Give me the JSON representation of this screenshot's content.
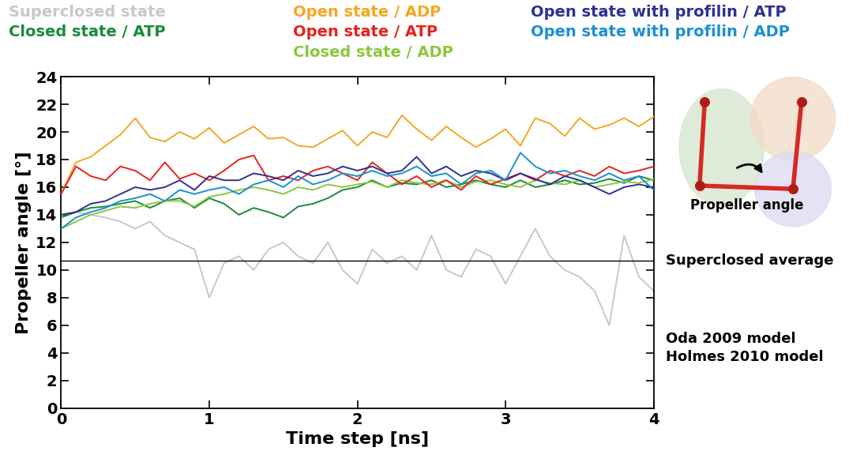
{
  "chart_data": {
    "type": "line",
    "x_label": "Time step [ns]",
    "y_label": "Propeller angle [°]",
    "xlim": [
      0,
      4
    ],
    "ylim": [
      0,
      24
    ],
    "xticks": [
      0,
      1,
      2,
      3,
      4
    ],
    "yticks": [
      0,
      2,
      4,
      6,
      8,
      10,
      12,
      14,
      16,
      18,
      20,
      22,
      24
    ],
    "x": [
      0,
      0.1,
      0.2,
      0.3,
      0.4,
      0.5,
      0.6,
      0.7,
      0.8,
      0.9,
      1.0,
      1.1,
      1.2,
      1.3,
      1.4,
      1.5,
      1.6,
      1.7,
      1.8,
      1.9,
      2.0,
      2.1,
      2.2,
      2.3,
      2.4,
      2.5,
      2.6,
      2.7,
      2.8,
      2.9,
      3.0,
      3.1,
      3.2,
      3.3,
      3.4,
      3.5,
      3.6,
      3.7,
      3.8,
      3.9,
      4.0
    ],
    "series": [
      {
        "name": "Superclosed state",
        "color": "#c8c8c8",
        "values": [
          14.0,
          14.2,
          14.0,
          13.8,
          13.5,
          13.0,
          13.5,
          12.5,
          12.0,
          11.5,
          8.0,
          10.5,
          11.0,
          10.0,
          11.5,
          12.0,
          11.0,
          10.5,
          12.0,
          10.0,
          9.0,
          11.5,
          10.5,
          11.0,
          10.0,
          12.5,
          10.0,
          9.5,
          11.5,
          11.0,
          9.0,
          11.0,
          13.0,
          11.0,
          10.0,
          9.5,
          8.5,
          6.0,
          12.5,
          9.5,
          8.5
        ]
      },
      {
        "name": "Closed state / ATP",
        "color": "#1a8a3c",
        "values": [
          13.8,
          14.2,
          14.5,
          14.6,
          14.8,
          15.0,
          14.5,
          15.0,
          15.2,
          14.5,
          15.2,
          14.8,
          14.0,
          14.5,
          14.2,
          13.8,
          14.6,
          14.8,
          15.2,
          15.8,
          16.0,
          16.5,
          16.0,
          16.3,
          16.2,
          16.5,
          16.0,
          16.2,
          16.5,
          16.2,
          16.0,
          16.5,
          16.0,
          16.2,
          16.5,
          16.2,
          16.3,
          16.6,
          16.3,
          16.8,
          16.5
        ]
      },
      {
        "name": "Closed state / ADP",
        "color": "#8cc63f",
        "values": [
          13.0,
          13.5,
          14.0,
          14.3,
          14.6,
          14.5,
          14.8,
          15.0,
          15.0,
          14.6,
          15.3,
          15.5,
          15.8,
          16.0,
          15.8,
          15.5,
          16.0,
          15.8,
          16.2,
          16.0,
          16.2,
          16.4,
          16.0,
          16.5,
          16.3,
          16.2,
          16.5,
          16.0,
          16.4,
          16.5,
          16.2,
          16.0,
          16.5,
          16.3,
          16.2,
          16.5,
          16.0,
          16.2,
          16.4,
          16.3,
          16.6
        ]
      },
      {
        "name": "Open state / ADP",
        "color": "#f5a623",
        "values": [
          15.5,
          17.8,
          18.2,
          19.0,
          19.8,
          21.0,
          19.6,
          19.3,
          20.0,
          19.5,
          20.3,
          19.2,
          19.8,
          20.4,
          19.5,
          19.6,
          19.0,
          18.9,
          19.5,
          20.1,
          19.0,
          20.0,
          19.6,
          21.2,
          20.2,
          19.4,
          20.4,
          19.6,
          18.9,
          19.5,
          20.2,
          19.0,
          21.0,
          20.6,
          19.7,
          21.0,
          20.2,
          20.5,
          21.0,
          20.4,
          21.1
        ]
      },
      {
        "name": "Open state / ATP",
        "color": "#e8221c",
        "values": [
          15.5,
          17.5,
          16.8,
          16.5,
          17.5,
          17.2,
          16.5,
          17.8,
          16.6,
          17.0,
          16.5,
          17.2,
          18.0,
          18.3,
          16.5,
          16.8,
          16.5,
          17.2,
          17.5,
          17.0,
          16.5,
          17.8,
          17.0,
          16.2,
          16.8,
          16.0,
          16.5,
          15.8,
          16.8,
          16.2,
          16.6,
          17.0,
          16.5,
          17.2,
          16.8,
          17.2,
          16.8,
          17.5,
          17.0,
          17.2,
          17.5
        ]
      },
      {
        "name": "Open state with profilin / ATP",
        "color": "#2e3192",
        "values": [
          14.0,
          14.2,
          14.8,
          15.0,
          15.5,
          16.0,
          15.8,
          16.0,
          16.5,
          15.8,
          16.8,
          16.5,
          16.5,
          17.0,
          16.8,
          16.5,
          17.2,
          16.8,
          17.0,
          17.5,
          17.2,
          17.5,
          17.0,
          17.2,
          18.2,
          17.0,
          17.5,
          16.8,
          17.2,
          17.0,
          16.5,
          17.0,
          16.6,
          16.2,
          16.8,
          16.5,
          16.0,
          15.5,
          16.0,
          16.2,
          16.0
        ]
      },
      {
        "name": "Open state with profilin / ADP",
        "color": "#1b8fd2",
        "values": [
          13.0,
          13.8,
          14.2,
          14.5,
          15.0,
          15.2,
          15.5,
          15.0,
          15.8,
          15.5,
          15.8,
          16.0,
          15.5,
          16.2,
          16.5,
          16.0,
          16.8,
          16.2,
          16.5,
          17.0,
          16.8,
          17.2,
          16.8,
          17.0,
          17.5,
          16.8,
          17.0,
          16.2,
          17.0,
          17.2,
          16.5,
          18.5,
          17.5,
          17.0,
          17.2,
          16.8,
          16.5,
          17.0,
          16.5,
          16.8,
          15.8
        ]
      }
    ],
    "reference_line": {
      "label": "Superclosed average",
      "value": 10.7
    },
    "annotations": [
      {
        "text": "Oda 2009 model",
        "y": 5.0
      },
      {
        "text": "Holmes 2010 model",
        "y": 3.7
      }
    ],
    "inset_label": "Propeller angle"
  }
}
